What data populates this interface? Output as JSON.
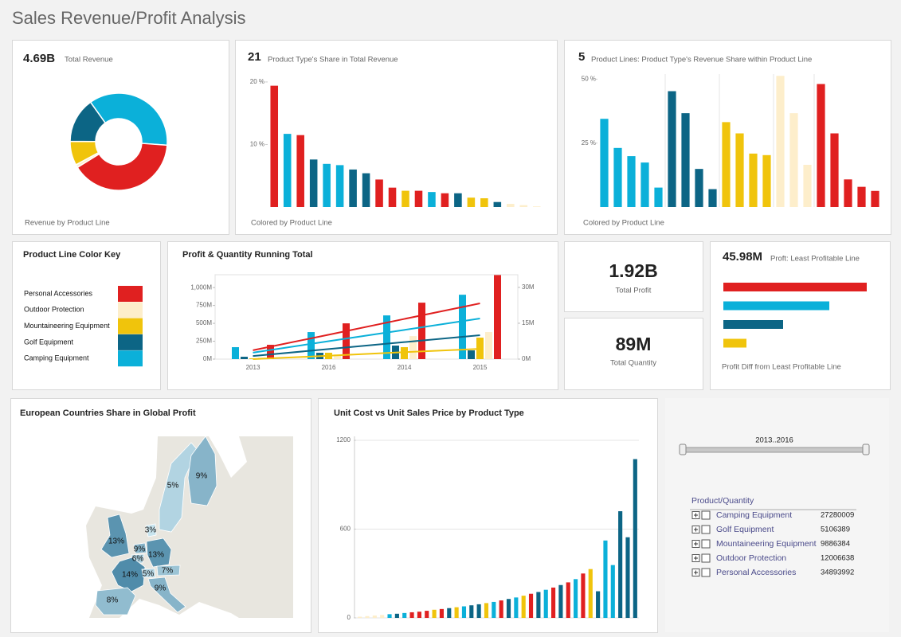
{
  "title": "Sales Revenue/Profit Analysis",
  "chart_data": [
    {
      "type": "donut",
      "kpi": "4.69B",
      "kpi_label": "Total Revenue",
      "footer": "Revenue by Product Line",
      "values": [
        36,
        40,
        1,
        8,
        15
      ],
      "colors": [
        "#0bb0d9",
        "#e02020",
        "#fdeecb",
        "#f0c40c",
        "#0c6585"
      ]
    },
    {
      "type": "bar",
      "kpi": "21",
      "kpi_label": "Product Type's Share in Total Revenue",
      "footer": "Colored by Product Line",
      "values": [
        19.4,
        11.7,
        11.5,
        7.6,
        6.9,
        6.7,
        6.0,
        5.4,
        4.4,
        3.1,
        2.6,
        2.6,
        2.4,
        2.2,
        2.2,
        1.5,
        1.4,
        0.8,
        0.5,
        0.3,
        0.1
      ],
      "colors": [
        "#e02020",
        "#0bb0d9",
        "#e02020",
        "#0c6585",
        "#0bb0d9",
        "#0bb0d9",
        "#0c6585",
        "#0c6585",
        "#e02020",
        "#e02020",
        "#f0c40c",
        "#e02020",
        "#0bb0d9",
        "#e02020",
        "#0c6585",
        "#f0c40c",
        "#f0c40c",
        "#0c6585",
        "#fdeecb",
        "#fdeecb",
        "#fdeecb"
      ],
      "ylim": [
        0,
        20.5
      ],
      "yticks": [
        {
          "value": 10,
          "label": "10 %"
        },
        {
          "value": 20,
          "label": "20 %"
        }
      ]
    },
    {
      "type": "bar",
      "kpi": "5",
      "kpi_label": "Product Lines: Product Type's Revenue Share within Product Line",
      "footer": "Colored by Product Line",
      "values": [
        34.5,
        23.1,
        19.9,
        17.4,
        7.6,
        45.3,
        36.7,
        14.9,
        7.0,
        33.2,
        28.8,
        20.9,
        20.3,
        51.3,
        36.7,
        16.5,
        48.1,
        28.8,
        10.8,
        7.9,
        6.3
      ],
      "colors": [
        "#0bb0d9",
        "#0bb0d9",
        "#0bb0d9",
        "#0bb0d9",
        "#0bb0d9",
        "#0c6585",
        "#0c6585",
        "#0c6585",
        "#0c6585",
        "#f0c40c",
        "#f0c40c",
        "#f0c40c",
        "#f0c40c",
        "#fdeecb",
        "#fdeecb",
        "#fdeecb",
        "#e02020",
        "#e02020",
        "#e02020",
        "#e02020",
        "#e02020"
      ],
      "ylim": [
        0,
        52
      ],
      "yticks": [
        {
          "value": 25,
          "label": "25 %"
        },
        {
          "value": 50,
          "label": "50 %"
        }
      ]
    },
    {
      "type": "combo",
      "title": "Profit & Quantity Running Total",
      "categories": [
        "2013",
        "2016",
        "2014",
        "2015"
      ],
      "series": [
        {
          "kind": "bar",
          "color": "#0bb0d9",
          "values": [
            167,
            378,
            611,
            900
          ]
        },
        {
          "kind": "bar",
          "color": "#0c6585",
          "values": [
            33,
            89,
            189,
            122
          ]
        },
        {
          "kind": "bar",
          "color": "#f0c40c",
          "values": [
            11,
            89,
            167,
            300
          ]
        },
        {
          "kind": "bar",
          "color": "#fdeecb",
          "values": [
            22,
            67,
            322,
            378
          ]
        },
        {
          "kind": "bar",
          "color": "#e02020",
          "values": [
            200,
            500,
            789,
            1175
          ]
        },
        {
          "kind": "line",
          "axis": "y2",
          "color": "#e02020",
          "values": [
            3.7,
            10.2,
            16.8,
            23.3
          ]
        },
        {
          "kind": "line",
          "axis": "y2",
          "color": "#0bb0d9",
          "values": [
            2.7,
            7.5,
            12.2,
            17
          ]
        },
        {
          "kind": "line",
          "axis": "y2",
          "color": "#0c6585",
          "values": [
            1.3,
            4.2,
            7.1,
            10
          ]
        },
        {
          "kind": "line",
          "axis": "y2",
          "color": "#f0c40c",
          "values": [
            0,
            1.4,
            2.9,
            4.3
          ]
        }
      ],
      "ylim": [
        0,
        1180
      ],
      "yticks": [
        {
          "value": 0,
          "label": "0M"
        },
        {
          "value": 250,
          "label": "250M"
        },
        {
          "value": 500,
          "label": "500M"
        },
        {
          "value": 750,
          "label": "750M"
        },
        {
          "value": 1000,
          "label": "1,000M"
        }
      ],
      "y2lim": [
        0,
        35.3
      ],
      "y2ticks": [
        {
          "value": 0,
          "label": "0M"
        },
        {
          "value": 15,
          "label": "15M"
        },
        {
          "value": 30,
          "label": "30M"
        }
      ]
    },
    {
      "type": "hbar",
      "kpi": "45.98M",
      "kpi_label": "Proft: Least Profitable Line",
      "footer": "Profit Diff from Least Profitable Line",
      "values": [
        180,
        133,
        75,
        29
      ],
      "colors": [
        "#e02020",
        "#0bb0d9",
        "#0c6585",
        "#f0c40c"
      ],
      "xlim": [
        0,
        200
      ]
    },
    {
      "type": "map",
      "title": "European Countries Share in Global Profit",
      "values": [
        5,
        9,
        3,
        13,
        9,
        13,
        6,
        14,
        5,
        7,
        9,
        8
      ],
      "value_labels": [
        "5%",
        "9%",
        "3%",
        "13%",
        "9%",
        "13%",
        "6%",
        "14%",
        "5%",
        "7%",
        "9%",
        "8%"
      ]
    },
    {
      "type": "bar",
      "title": "Unit Cost vs Unit Sales Price by Product Type",
      "values": [
        8,
        12,
        16,
        20,
        25,
        28,
        33,
        38,
        42,
        48,
        55,
        60,
        66,
        72,
        78,
        85,
        92,
        100,
        108,
        118,
        128,
        138,
        150,
        163,
        175,
        190,
        205,
        222,
        240,
        262,
        300,
        330,
        180,
        523,
        357,
        721,
        545,
        1073
      ],
      "colors": [
        "#fdeecb",
        "#fdeecb",
        "#fdeecb",
        "#fdeecb",
        "#0bb0d9",
        "#0c6585",
        "#0bb0d9",
        "#e02020",
        "#e02020",
        "#e02020",
        "#f0c40c",
        "#e02020",
        "#0c6585",
        "#f0c40c",
        "#0bb0d9",
        "#0c6585",
        "#0c6585",
        "#f0c40c",
        "#0bb0d9",
        "#e02020",
        "#0c6585",
        "#0bb0d9",
        "#f0c40c",
        "#e02020",
        "#0c6585",
        "#0bb0d9",
        "#e02020",
        "#0c6585",
        "#e02020",
        "#0bb0d9",
        "#e02020",
        "#f0c40c",
        "#0c6585",
        "#0bb0d9",
        "#0bb0d9",
        "#0c6585",
        "#0c6585",
        "#0c6585"
      ],
      "ylim": [
        0,
        1227
      ],
      "yticks": [
        0,
        600,
        1200
      ],
      "grid": true
    }
  ],
  "color_key": {
    "title": "Product Line Color Key",
    "items": [
      {
        "label": "Personal Accessories",
        "color": "#e02020"
      },
      {
        "label": "Outdoor Protection",
        "color": "#fdeecb"
      },
      {
        "label": "Mountaineering Equipment",
        "color": "#f0c40c"
      },
      {
        "label": "Golf Equipment",
        "color": "#0c6585"
      },
      {
        "label": "Camping Equipment",
        "color": "#0bb0d9"
      }
    ]
  },
  "kpis": [
    {
      "value": "1.92B",
      "label": "Total Profit"
    },
    {
      "value": "89M",
      "label": "Total Quantity"
    }
  ],
  "slicer": {
    "label": "2013..2016"
  },
  "tree": {
    "header": "Product/Quantity",
    "rows": [
      {
        "label": "Camping Equipment",
        "value": 27280009
      },
      {
        "label": "Golf Equipment",
        "value": 5106389
      },
      {
        "label": "Mountaineering Equipment",
        "value": 9886384
      },
      {
        "label": "Outdoor Protection",
        "value": 12006638
      },
      {
        "label": "Personal Accessories",
        "value": 34893992
      }
    ]
  }
}
